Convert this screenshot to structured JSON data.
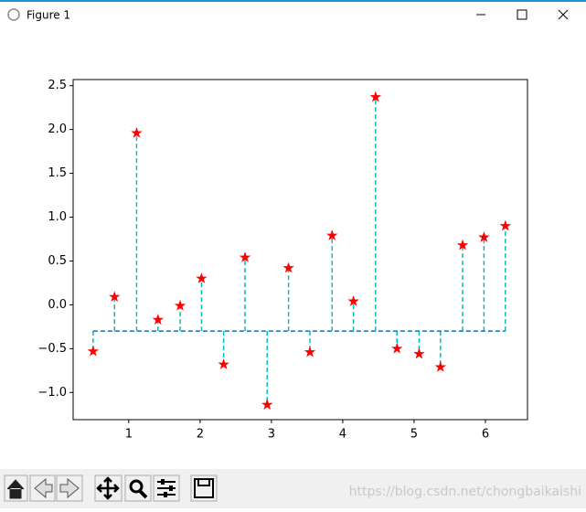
{
  "window": {
    "title": "Figure 1"
  },
  "watermark": "https://blog.csdn.net/chongbaikaishi",
  "chart_data": {
    "type": "stem",
    "x": [
      0.5,
      0.8,
      1.11,
      1.41,
      1.72,
      2.02,
      2.33,
      2.63,
      2.94,
      3.24,
      3.54,
      3.85,
      4.15,
      4.46,
      4.76,
      5.07,
      5.37,
      5.68,
      5.98,
      6.28
    ],
    "values": [
      -0.53,
      0.09,
      1.96,
      -0.17,
      -0.01,
      0.3,
      -0.68,
      0.54,
      -1.14,
      0.42,
      -0.54,
      0.79,
      0.04,
      2.37,
      -0.5,
      -0.56,
      -0.71,
      0.68,
      0.77,
      0.9
    ],
    "baseline": -0.3,
    "stem_color": "#00bfbf",
    "marker_color": "#ff0000",
    "baseline_color": "#1f6f9f",
    "xlim": [
      0.22,
      6.59
    ],
    "ylim": [
      -1.31,
      2.57
    ],
    "xticks": [
      1,
      2,
      3,
      4,
      5,
      6
    ],
    "yticks": [
      {
        "value": -1.0,
        "label": "−1.0"
      },
      {
        "value": -0.5,
        "label": "−0.5"
      },
      {
        "value": 0.0,
        "label": "0.0"
      },
      0.5,
      {
        "value": 1.0,
        "label": "1.0"
      },
      1.5,
      {
        "value": 2.0,
        "label": "2.0"
      },
      2.5
    ]
  }
}
